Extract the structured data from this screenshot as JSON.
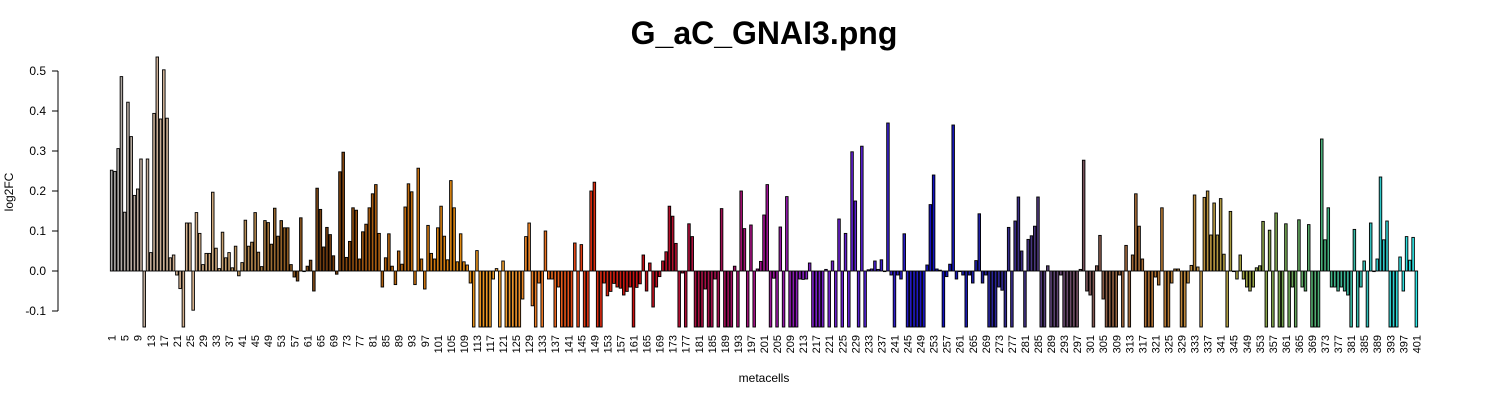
{
  "chart_data": {
    "type": "bar",
    "title": "G_aC_GNAI3.png",
    "xlabel": "metacells",
    "ylabel": "log2FC",
    "ylim": [
      -0.14,
      0.54
    ],
    "yticks": [
      "-0.1",
      "0.0",
      "0.1",
      "0.2",
      "0.3",
      "0.4",
      "0.5"
    ],
    "ytick_values": [
      -0.1,
      0.0,
      0.1,
      0.2,
      0.3,
      0.4,
      0.5
    ],
    "grid": false,
    "legend": "none",
    "x_start": 1,
    "x_label_step": 4,
    "palette": [
      "#a6a6a6",
      "#c9ae97",
      "#d9b38c",
      "#b8905a",
      "#8c5a22",
      "#6e3a0e",
      "#a65a10",
      "#c46e10",
      "#e08810",
      "#f0a030",
      "#e87020",
      "#e03010",
      "#c81010",
      "#b01030",
      "#a01050",
      "#a01090",
      "#8020c0",
      "#6020d0",
      "#3020c8",
      "#1010c0",
      "#2020a0",
      "#403080",
      "#6a4a6a",
      "#906040",
      "#b07030",
      "#c09040",
      "#a0a040",
      "#70a050",
      "#40b080",
      "#30c0c0",
      "#30e8e8"
    ],
    "values": [
      0.252,
      0.249,
      0.306,
      0.486,
      0.147,
      0.422,
      0.336,
      0.189,
      0.205,
      0.28,
      -0.14,
      0.28,
      0.046,
      0.394,
      0.535,
      0.38,
      0.503,
      0.382,
      0.033,
      0.04,
      -0.01,
      -0.044,
      -0.14,
      0.12,
      0.12,
      -0.098,
      0.146,
      0.094,
      0.016,
      0.044,
      0.044,
      0.197,
      0.057,
      0.006,
      0.097,
      0.033,
      0.046,
      0.008,
      0.062,
      -0.012,
      0.021,
      0.127,
      0.062,
      0.072,
      0.146,
      0.047,
      0.011,
      0.126,
      0.121,
      0.067,
      0.157,
      0.087,
      0.126,
      0.108,
      0.108,
      0.016,
      -0.015,
      -0.025,
      0.133,
      0.0,
      0.012,
      0.027,
      -0.05,
      0.207,
      0.154,
      0.06,
      0.109,
      0.091,
      0.038,
      -0.008,
      0.248,
      0.297,
      0.034,
      0.074,
      0.158,
      0.152,
      0.03,
      0.098,
      0.117,
      0.158,
      0.193,
      0.216,
      0.094,
      -0.04,
      0.033,
      0.093,
      0.012,
      -0.034,
      0.05,
      0.017,
      0.16,
      0.218,
      0.198,
      -0.034,
      0.257,
      0.03,
      -0.045,
      0.114,
      0.044,
      0.03,
      0.108,
      0.162,
      0.087,
      0.028,
      0.226,
      0.158,
      0.023,
      0.093,
      0.023,
      0.015,
      -0.03,
      -0.14,
      0.051,
      -0.14,
      -0.14,
      -0.14,
      -0.14,
      -0.02,
      0.006,
      -0.14,
      0.025,
      -0.14,
      -0.14,
      -0.14,
      -0.14,
      -0.14,
      -0.07,
      0.086,
      0.12,
      -0.087,
      -0.14,
      -0.03,
      -0.14,
      0.1,
      -0.02,
      -0.02,
      -0.14,
      -0.04,
      -0.14,
      -0.14,
      -0.14,
      -0.14,
      0.07,
      -0.14,
      0.066,
      -0.14,
      -0.14,
      0.2,
      0.222,
      -0.14,
      -0.14,
      -0.03,
      -0.062,
      -0.051,
      -0.031,
      -0.04,
      -0.043,
      -0.06,
      -0.051,
      -0.04,
      -0.14,
      -0.041,
      -0.032,
      0.04,
      -0.05,
      0.02,
      -0.09,
      -0.04,
      -0.014,
      0.025,
      0.048,
      0.162,
      0.137,
      0.069,
      -0.14,
      -0.005,
      -0.14,
      0.118,
      0.086,
      -0.14,
      -0.14,
      -0.14,
      -0.045,
      -0.14,
      -0.14,
      -0.02,
      -0.14,
      0.156,
      -0.14,
      -0.14,
      -0.14,
      0.012,
      -0.14,
      0.2,
      0.106,
      -0.14,
      0.115,
      -0.14,
      0.005,
      0.024,
      0.14,
      0.216,
      -0.14,
      -0.018,
      -0.14,
      0.11,
      -0.14,
      0.186,
      -0.14,
      -0.14,
      -0.14,
      -0.02,
      -0.021,
      -0.02,
      0.02,
      -0.14,
      -0.14,
      -0.14,
      -0.14,
      0.004,
      -0.14,
      0.025,
      -0.14,
      0.13,
      -0.14,
      0.094,
      -0.14,
      0.298,
      0.175,
      -0.14,
      0.312,
      -0.14,
      0.003,
      0.005,
      0.025,
      0.004,
      0.028,
      0.0,
      0.37,
      -0.01,
      -0.14,
      -0.01,
      -0.02,
      0.093,
      -0.14,
      -0.14,
      -0.14,
      -0.14,
      -0.14,
      -0.14,
      0.015,
      0.166,
      0.24,
      0.005,
      0.002,
      -0.14,
      -0.014,
      0.017,
      0.365,
      -0.02,
      0.0,
      -0.01,
      -0.14,
      -0.01,
      -0.03,
      0.026,
      0.143,
      -0.03,
      -0.01,
      -0.14,
      -0.14,
      -0.14,
      -0.04,
      -0.048,
      -0.14,
      0.109,
      -0.14,
      0.125,
      0.185,
      0.05,
      -0.14,
      0.079,
      0.088,
      0.112,
      0.185,
      -0.14,
      -0.14,
      0.013,
      -0.14,
      -0.14,
      -0.14,
      -0.01,
      -0.14,
      -0.14,
      -0.14,
      -0.14,
      -0.14,
      0.004,
      0.277,
      -0.05,
      -0.06,
      -0.14,
      0.013,
      0.089,
      -0.07,
      -0.14,
      -0.14,
      -0.14,
      -0.14,
      -0.01,
      -0.14,
      0.064,
      -0.14,
      0.04,
      0.193,
      0.112,
      0.03,
      -0.14,
      -0.14,
      -0.14,
      -0.015,
      -0.035,
      0.158,
      -0.14,
      -0.14,
      -0.03,
      0.005,
      0.005,
      -0.14,
      -0.14,
      -0.03,
      0.014,
      0.19,
      0.01,
      -0.14,
      0.184,
      0.2,
      0.09,
      0.17,
      0.09,
      0.181,
      0.042,
      -0.14,
      0.149,
      0.0,
      -0.02,
      0.04,
      -0.02,
      -0.04,
      -0.05,
      -0.04,
      0.008,
      0.013,
      0.124,
      -0.14,
      0.102,
      -0.14,
      0.145,
      -0.14,
      -0.14,
      0.118,
      -0.14,
      -0.04,
      -0.14,
      0.128,
      -0.04,
      -0.05,
      0.116,
      -0.14,
      -0.14,
      -0.14,
      0.33,
      0.078,
      0.158,
      -0.04,
      -0.04,
      -0.05,
      -0.04,
      -0.05,
      -0.06,
      -0.14,
      0.104,
      -0.14,
      -0.04,
      0.025,
      -0.14,
      0.12,
      0.0,
      0.03,
      0.235,
      0.078,
      0.125,
      -0.14,
      -0.14,
      -0.14,
      0.035,
      -0.05,
      0.086,
      0.027,
      0.084,
      -0.14
    ]
  }
}
